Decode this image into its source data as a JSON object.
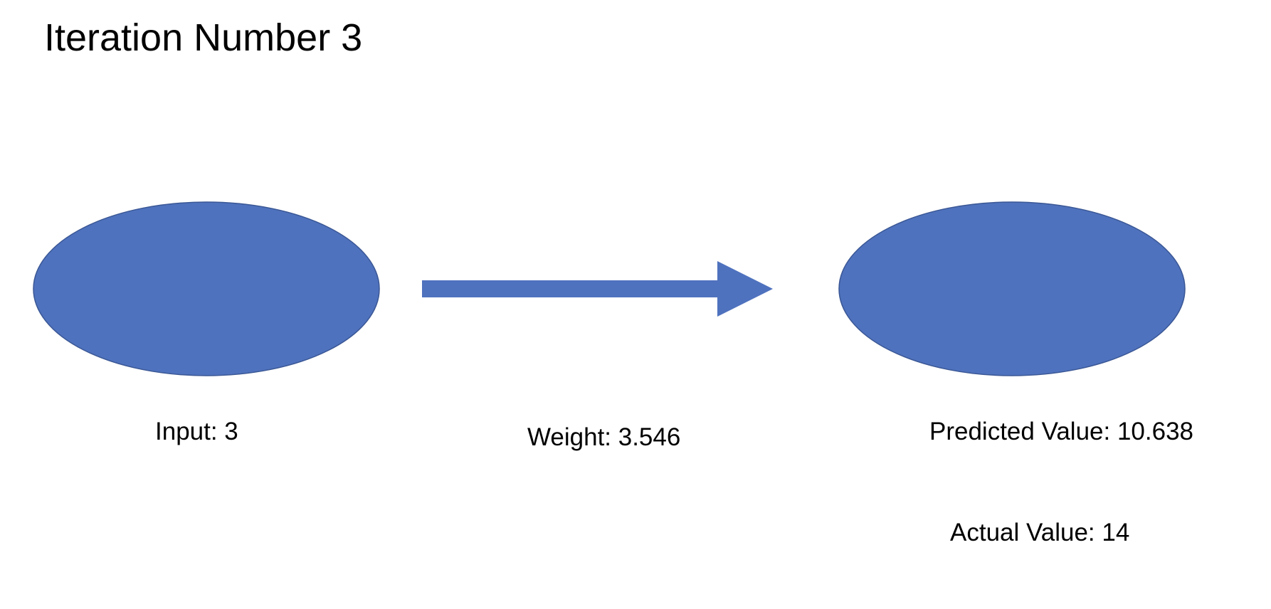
{
  "slide": {
    "title": "Iteration Number 3"
  },
  "diagram": {
    "node_fill": "#4f72be",
    "node_stroke": "#3a5795",
    "arrow_fill": "#4f72be",
    "input_label": "Input: 3",
    "weight_label": "Weight: 3.546",
    "predicted_label": "Predicted Value: 10.638",
    "actual_label": "Actual Value: 14"
  }
}
